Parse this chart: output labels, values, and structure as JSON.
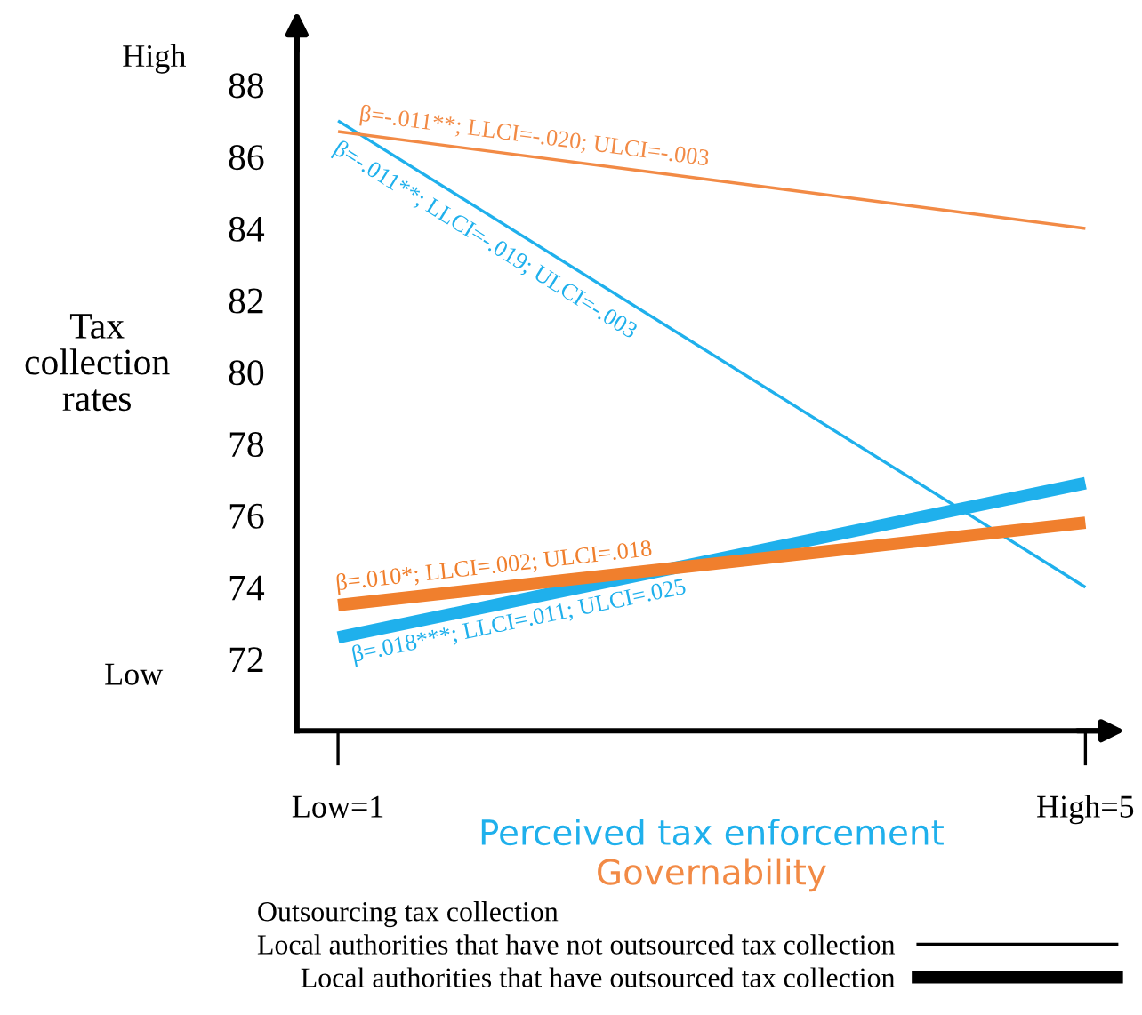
{
  "chart_data": {
    "type": "line",
    "ylabel": "Tax\ncollection\nrates",
    "xlabel": "Perceived tax enforcement",
    "legend_title": "Outsourcing tax collection",
    "x": [
      1,
      5
    ],
    "xlim": [
      0.78,
      5.15
    ],
    "xticks": [
      {
        "value": 1,
        "label": "Low=1"
      },
      {
        "value": 5,
        "label": "High=5"
      }
    ],
    "ylim": [
      70,
      89.8
    ],
    "yticks": [
      72,
      74,
      76,
      78,
      80,
      82,
      84,
      86,
      88
    ],
    "series": [
      {
        "color": "#1fb0ec",
        "values": [
          87.0,
          74.0
        ]
      },
      {
        "color": "#f28a45",
        "values": [
          86.7,
          84.0
        ]
      },
      {
        "color": "#1fb0ec",
        "values": [
          72.6,
          76.9
        ]
      },
      {
        "color": "#f07f2d",
        "values": [
          73.5,
          75.8
        ]
      }
    ],
    "annotations": [
      {
        "text": "β=-.011**; LLCI=-.019; ULCI=-.003",
        "x": 1.05,
        "y": 86.8
      },
      {
        "text": "β=-.011**; LLCI=-.020; ULCI=-.003",
        "x": 1.1,
        "y": 86.6
      },
      {
        "text": "β=.018***; LLCI=.011; ULCI=.025",
        "x": 1.05,
        "y": 72.7
      },
      {
        "text": "β=.010*; LLCI=.002; ULCI=.018",
        "x": 1,
        "y": 73.5
      },
      "Governability",
      "High",
      "Low",
      "Local authorities that have not outsourced tax collection",
      "Local authorities that have outsourced tax collection"
    ],
    "grid": false
  }
}
